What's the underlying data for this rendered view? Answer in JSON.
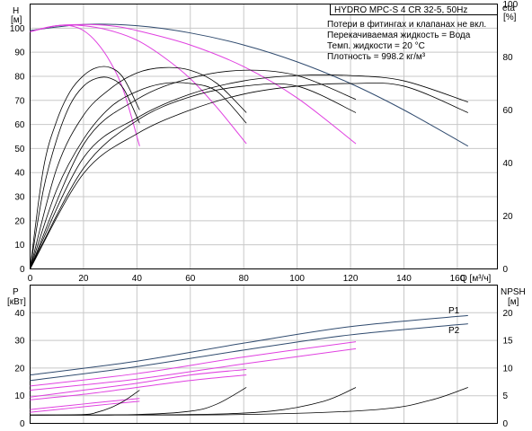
{
  "title_box": "HYDRO MPC-S 4 CR 32-5, 50Hz",
  "info_lines": [
    "Потери в фитингах и клапанах не вкл.",
    "Перекачиваемая жидкость = Вода",
    "Темп. жидкости = 20 °C",
    "Плотность = 998.2 кг/м³"
  ],
  "colors": {
    "head": "#2f4a6e",
    "eff": "#000000",
    "power": "#2f4a6e",
    "power_var": "#e040e0",
    "npsh": "#000000",
    "grid": "#c8c8c8"
  },
  "chart_data": [
    {
      "type": "line",
      "panel": "head-efficiency",
      "xlabel": "Q [м³/ч]",
      "xlim": [
        0,
        175
      ],
      "xticks": [
        0,
        20,
        40,
        60,
        80,
        100,
        120,
        140,
        160
      ],
      "ylabel_left": "H",
      "yunit_left": "[м]",
      "ylim_left": [
        0,
        110
      ],
      "yticks_left": [
        0,
        10,
        20,
        30,
        40,
        50,
        60,
        70,
        80,
        90,
        100
      ],
      "ylabel_right": "eta",
      "yunit_right": "[%]",
      "ylim_right": [
        0,
        100
      ],
      "yticks_right": [
        0,
        20,
        40,
        60,
        80,
        100
      ],
      "series": [
        {
          "axis": "left",
          "style": "head",
          "x": [
            0,
            20,
            40,
            60,
            80,
            100,
            120,
            140,
            164
          ],
          "y": [
            99,
            101.5,
            101,
            98,
            93,
            86,
            77,
            66,
            51
          ]
        },
        {
          "axis": "left",
          "style": "head_var",
          "x": [
            0,
            10,
            20,
            30,
            40,
            60,
            80,
            100,
            122
          ],
          "y": [
            98.5,
            101,
            101.5,
            101,
            99,
            93,
            84,
            71,
            52
          ]
        },
        {
          "axis": "left",
          "style": "head_var",
          "x": [
            0,
            10,
            20,
            30,
            40,
            50,
            60,
            70,
            81
          ],
          "y": [
            98.5,
            101,
            101,
            99,
            95,
            88,
            79,
            67,
            52
          ]
        },
        {
          "axis": "left",
          "style": "head_var",
          "x": [
            0,
            5,
            10,
            15,
            20,
            25,
            30,
            35,
            41
          ],
          "y": [
            98.5,
            100,
            101,
            101,
            99,
            94,
            86,
            74,
            51
          ]
        },
        {
          "axis": "right",
          "style": "eff",
          "x": [
            0,
            20,
            40,
            60,
            80,
            100,
            120,
            140,
            164
          ],
          "y": [
            0,
            42,
            57,
            66,
            71,
            73,
            73,
            71,
            63
          ]
        },
        {
          "axis": "right",
          "style": "eff",
          "x": [
            0,
            20,
            40,
            60,
            80,
            100,
            120,
            140,
            164
          ],
          "y": [
            0,
            36,
            51,
            60,
            66,
            69,
            70,
            69,
            59
          ]
        },
        {
          "axis": "right",
          "style": "eff",
          "x": [
            0,
            20,
            40,
            60,
            80,
            100,
            122
          ],
          "y": [
            0,
            47,
            64,
            72,
            75,
            73,
            64
          ]
        },
        {
          "axis": "right",
          "style": "eff",
          "x": [
            0,
            20,
            40,
            60,
            80,
            100,
            122
          ],
          "y": [
            0,
            38,
            56,
            65,
            69,
            69,
            59
          ]
        },
        {
          "axis": "right",
          "style": "eff",
          "x": [
            0,
            10,
            20,
            30,
            40,
            50,
            60,
            70,
            81
          ],
          "y": [
            0,
            38,
            58,
            68,
            74,
            76,
            75,
            70,
            59
          ]
        },
        {
          "axis": "right",
          "style": "eff",
          "x": [
            0,
            10,
            20,
            30,
            40,
            50,
            60,
            70,
            81
          ],
          "y": [
            0,
            30,
            49,
            61,
            67,
            70,
            70,
            67,
            55
          ]
        },
        {
          "axis": "right",
          "style": "eff",
          "x": [
            0,
            5,
            10,
            15,
            20,
            25,
            30,
            35,
            41
          ],
          "y": [
            0,
            38,
            56,
            67,
            73,
            76,
            76,
            72,
            60
          ]
        },
        {
          "axis": "right",
          "style": "eff",
          "x": [
            0,
            5,
            10,
            15,
            20,
            25,
            30,
            35,
            41
          ],
          "y": [
            0,
            30,
            49,
            62,
            69,
            72,
            72,
            68,
            55
          ]
        }
      ]
    },
    {
      "type": "line",
      "panel": "power-npsh",
      "xlim": [
        0,
        175
      ],
      "ylabel_left": "P",
      "yunit_left": "[кВт]",
      "ylim_left": [
        0,
        50
      ],
      "yticks_left": [
        0,
        10,
        20,
        30,
        40
      ],
      "ylabel_right": "NPSH",
      "yunit_right": "[м]",
      "ylim_right": [
        0,
        25
      ],
      "yticks_right": [
        0,
        5,
        10,
        15,
        20
      ],
      "series": [
        {
          "name": "P1",
          "axis": "left",
          "style": "power",
          "x": [
            0,
            40,
            80,
            120,
            164
          ],
          "y": [
            17.5,
            22.5,
            29,
            35,
            39
          ]
        },
        {
          "name": "P2",
          "axis": "left",
          "style": "power",
          "x": [
            0,
            40,
            80,
            120,
            164
          ],
          "y": [
            15.5,
            20.5,
            26.5,
            32,
            36
          ]
        },
        {
          "axis": "left",
          "style": "power_var",
          "x": [
            0,
            40,
            80,
            122
          ],
          "y": [
            13.5,
            18,
            24,
            29.5
          ]
        },
        {
          "axis": "left",
          "style": "power_var",
          "x": [
            0,
            40,
            80,
            122
          ],
          "y": [
            12,
            16,
            21.5,
            27
          ]
        },
        {
          "axis": "left",
          "style": "power_var",
          "x": [
            0,
            20,
            40,
            60,
            81
          ],
          "y": [
            9.5,
            12,
            14.5,
            17.5,
            19.5
          ]
        },
        {
          "axis": "left",
          "style": "power_var",
          "x": [
            0,
            20,
            40,
            60,
            81
          ],
          "y": [
            8.5,
            10.5,
            13,
            15.5,
            17.5
          ]
        },
        {
          "axis": "left",
          "style": "power_var",
          "x": [
            0,
            10,
            20,
            30,
            41
          ],
          "y": [
            5,
            6,
            7,
            8,
            9
          ]
        },
        {
          "axis": "left",
          "style": "power_var",
          "x": [
            0,
            10,
            20,
            30,
            41
          ],
          "y": [
            4,
            5,
            6,
            7,
            8
          ]
        },
        {
          "axis": "right",
          "style": "npsh",
          "x": [
            0,
            20,
            25,
            30,
            35,
            41
          ],
          "y": [
            1.5,
            1.6,
            2,
            2.8,
            4,
            6
          ]
        },
        {
          "axis": "right",
          "style": "npsh",
          "x": [
            0,
            40,
            60,
            70,
            81
          ],
          "y": [
            1.5,
            1.6,
            2.2,
            3.5,
            6.5
          ]
        },
        {
          "axis": "right",
          "style": "npsh",
          "x": [
            0,
            60,
            90,
            110,
            122
          ],
          "y": [
            1.5,
            1.6,
            2.2,
            4,
            6.5
          ]
        },
        {
          "axis": "right",
          "style": "npsh",
          "x": [
            0,
            80,
            130,
            150,
            164
          ],
          "y": [
            1.5,
            1.6,
            2.5,
            4.2,
            6.5
          ]
        }
      ]
    }
  ]
}
